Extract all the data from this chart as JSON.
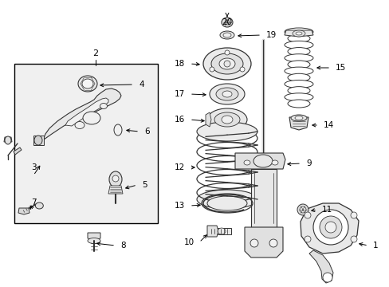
{
  "bg": "#ffffff",
  "box_bg": "#f0f0f0",
  "lc": "#333333",
  "fs": 7.5,
  "fig_w": 4.89,
  "fig_h": 3.6,
  "dpi": 100
}
